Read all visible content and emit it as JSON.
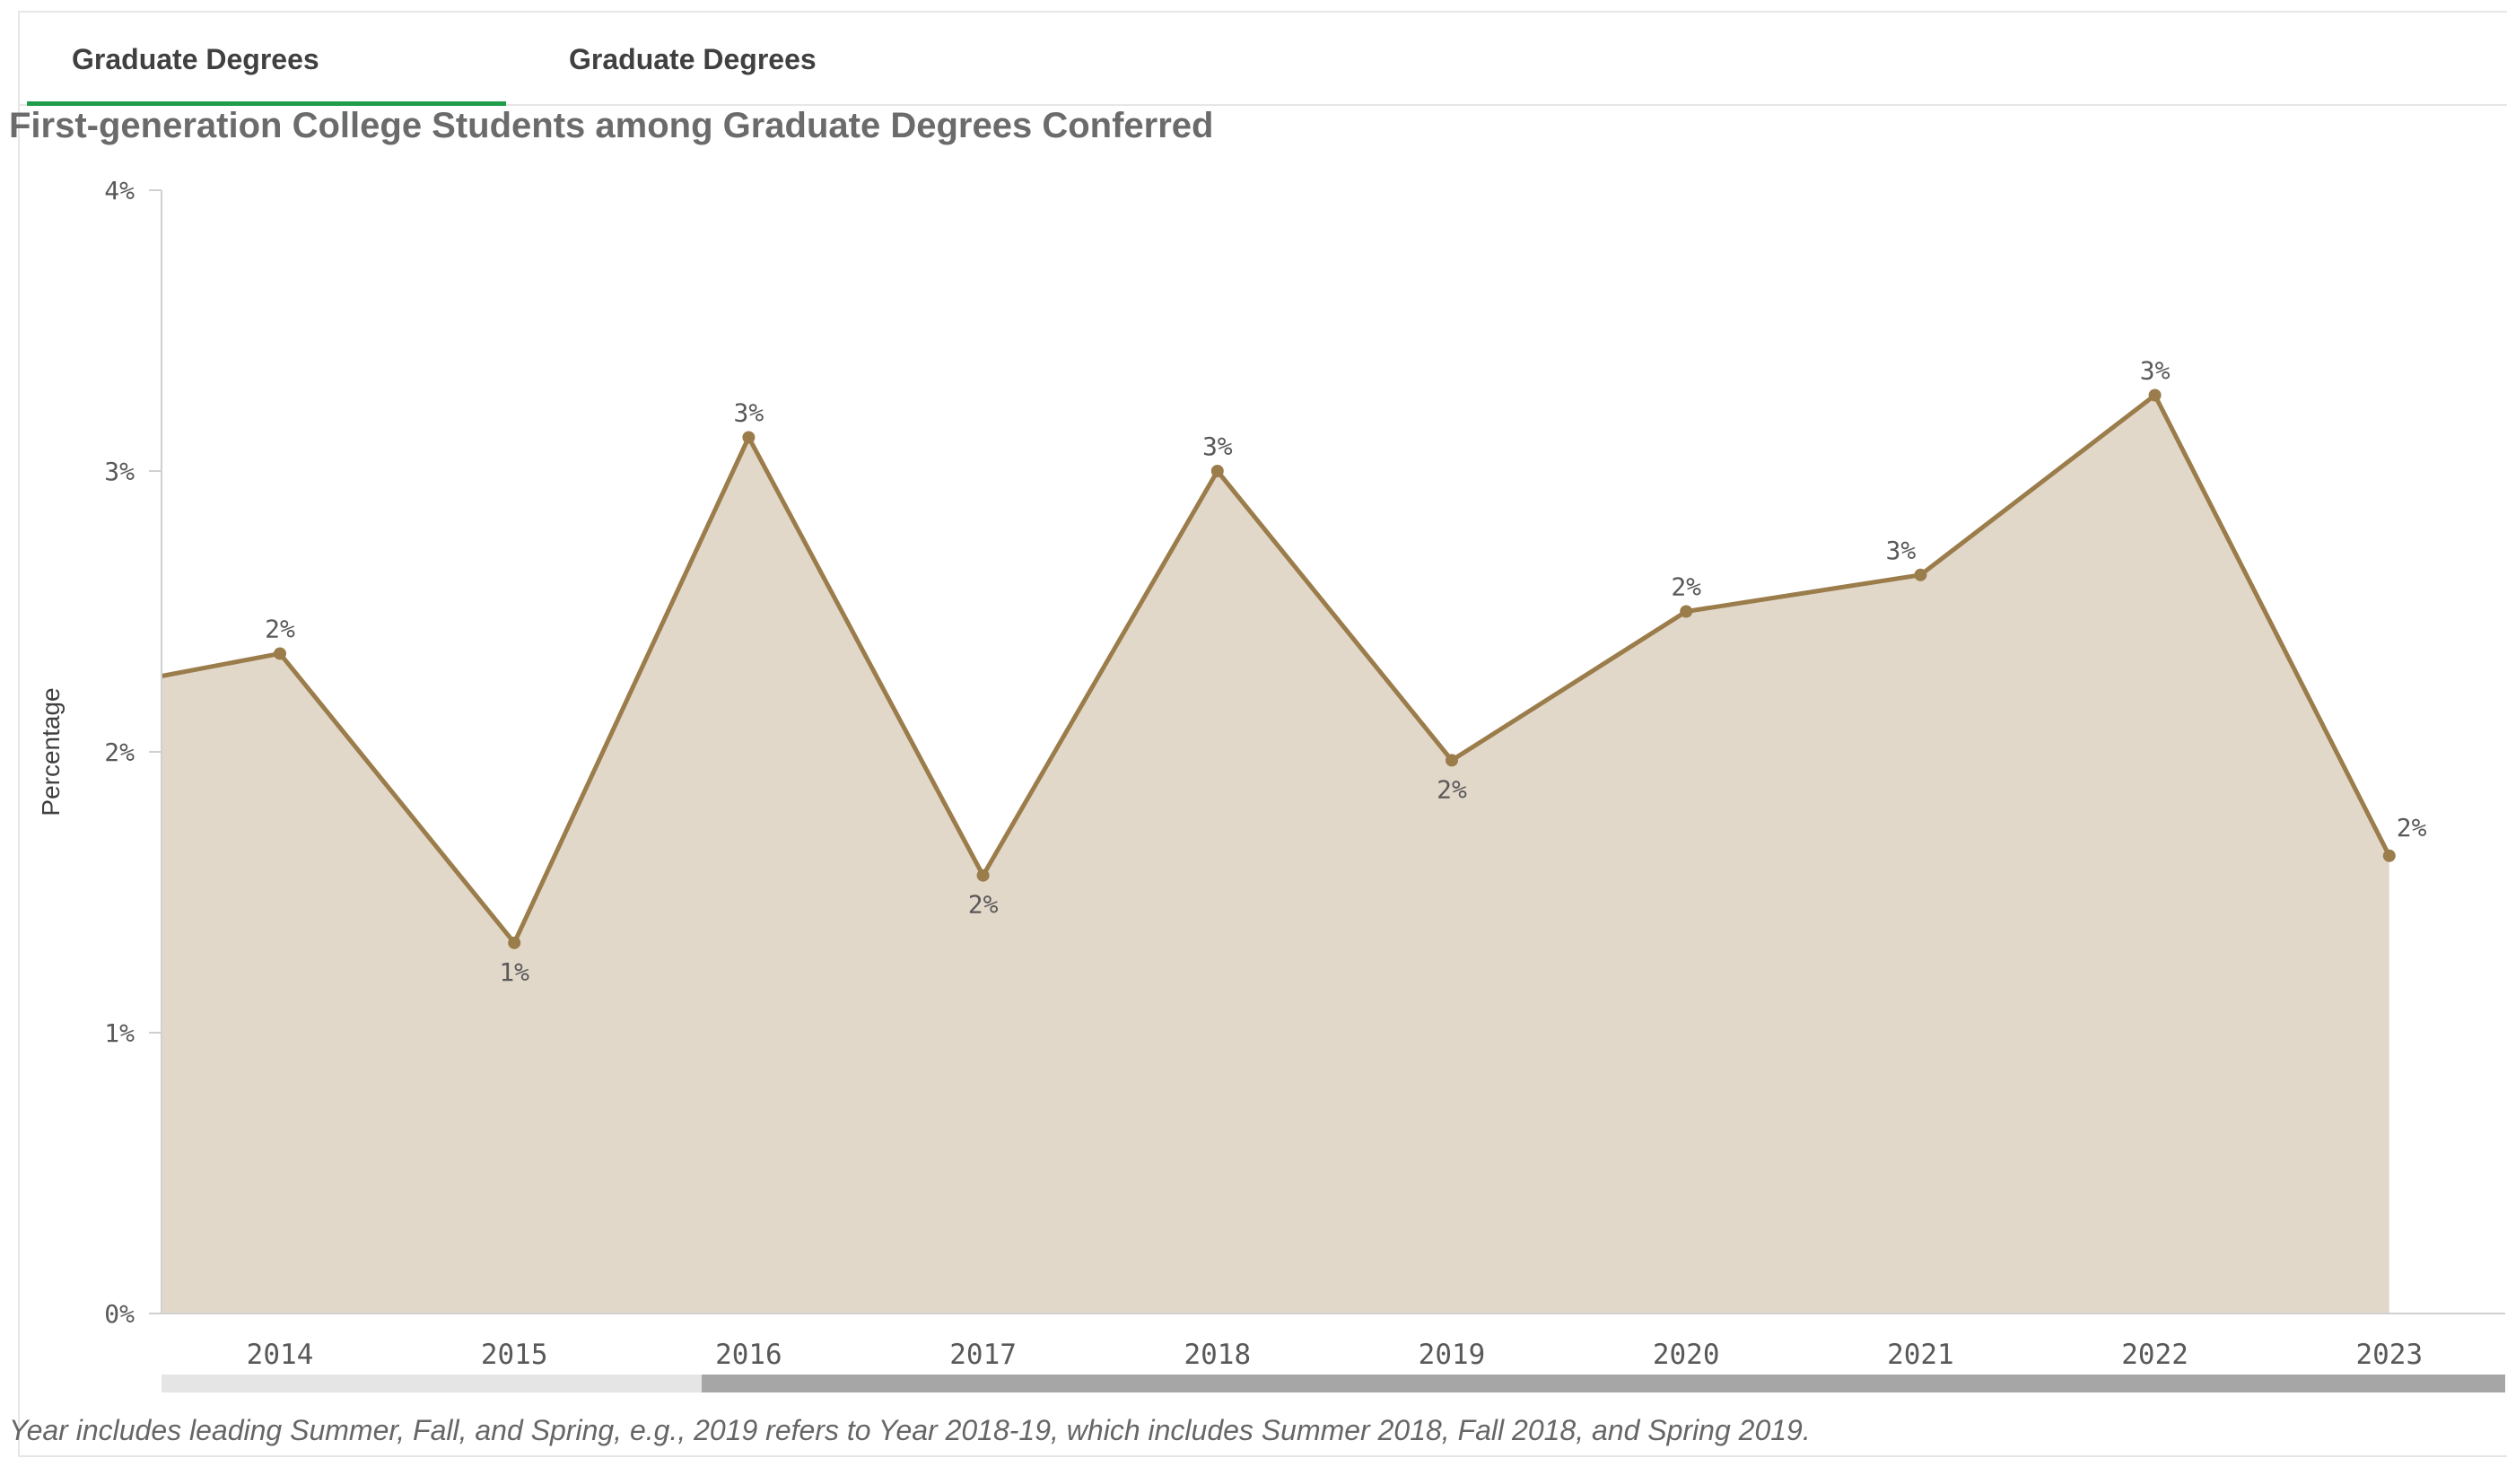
{
  "tabs": [
    {
      "label": "Graduate Degrees",
      "active": true
    },
    {
      "label": "Graduate Degrees",
      "active": false
    }
  ],
  "chart_data": {
    "type": "area",
    "title": "First-generation College Students among Graduate Degrees Conferred",
    "ylabel": "Percentage",
    "xlabel": "",
    "x": [
      "2014",
      "2015",
      "2016",
      "2017",
      "2018",
      "2019",
      "2020",
      "2021",
      "2022",
      "2023"
    ],
    "values": [
      2.35,
      1.32,
      3.12,
      1.56,
      3.0,
      1.97,
      2.5,
      2.63,
      3.27,
      1.63
    ],
    "data_labels": [
      "2%",
      "1%",
      "3%",
      "2%",
      "3%",
      "2%",
      "2%",
      "3%",
      "3%",
      "2%"
    ],
    "left_edge_value": 2.27,
    "ylim": [
      0,
      4
    ],
    "y_ticks": [
      0,
      1,
      2,
      3,
      4
    ],
    "y_tick_labels": [
      "0%",
      "1%",
      "2%",
      "3%",
      "4%"
    ],
    "grid": false,
    "legend": "none",
    "scrollbar": true,
    "colors": {
      "line": "#9b7c4b",
      "fill": "#e2d8c9",
      "axis": "#d0d0d0",
      "tab_accent": "#1f9d4a",
      "scroll_track": "#e5e5e5",
      "scroll_thumb": "#a6a6a6"
    }
  },
  "footnote": "Year includes leading Summer, Fall, and Spring, e.g., 2019 refers to Year 2018-19, which includes Summer 2018, Fall 2018, and Spring 2019."
}
